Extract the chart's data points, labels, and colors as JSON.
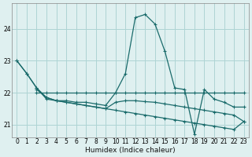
{
  "background_color": "#dff0f0",
  "grid_color": "#aed4d4",
  "line_color": "#1a6b6b",
  "xlabel": "Humidex (Indice chaleur)",
  "xlim": [
    -0.5,
    23.5
  ],
  "ylim": [
    20.6,
    24.8
  ],
  "yticks": [
    21,
    22,
    23,
    24
  ],
  "xticks": [
    0,
    1,
    2,
    3,
    4,
    5,
    6,
    7,
    8,
    9,
    10,
    11,
    12,
    13,
    14,
    15,
    16,
    17,
    18,
    19,
    20,
    21,
    22,
    23
  ],
  "line_flat_x": [
    2,
    3,
    4,
    5,
    6,
    7,
    8,
    9,
    10,
    11,
    12,
    13,
    14,
    15,
    16,
    17,
    18,
    19,
    20,
    21,
    22,
    23
  ],
  "line_flat_y": [
    22.0,
    22.0,
    22.0,
    22.0,
    22.0,
    22.0,
    22.0,
    22.0,
    22.0,
    22.0,
    22.0,
    22.0,
    22.0,
    22.0,
    22.0,
    22.0,
    22.0,
    22.0,
    22.0,
    22.0,
    22.0,
    22.0
  ],
  "line_peak_x": [
    0,
    1,
    2,
    3,
    4,
    5,
    6,
    7,
    8,
    9,
    10,
    11,
    12,
    13,
    14,
    15,
    16,
    17,
    18,
    19,
    20,
    21,
    22,
    23
  ],
  "line_peak_y": [
    23.0,
    22.6,
    22.15,
    21.8,
    21.75,
    21.75,
    21.7,
    21.7,
    21.65,
    21.6,
    22.0,
    22.6,
    24.35,
    24.45,
    24.15,
    23.3,
    22.15,
    22.1,
    20.7,
    22.1,
    21.8,
    21.7,
    21.55,
    21.55
  ],
  "line_slope1_x": [
    0,
    1,
    2,
    3,
    4,
    5,
    6,
    7,
    8,
    9,
    10,
    11,
    12,
    13,
    14,
    15,
    16,
    17,
    18,
    19,
    20,
    21,
    22,
    23
  ],
  "line_slope1_y": [
    23.0,
    22.6,
    22.15,
    21.85,
    21.75,
    21.7,
    21.65,
    21.6,
    21.55,
    21.5,
    21.45,
    21.4,
    21.35,
    21.3,
    21.25,
    21.2,
    21.15,
    21.1,
    21.05,
    21.0,
    20.95,
    20.9,
    20.85,
    21.1
  ],
  "line_slope2_x": [
    2,
    3,
    4,
    5,
    6,
    7,
    8,
    9,
    10,
    11,
    12,
    13,
    14,
    15,
    16,
    17,
    18,
    19,
    20,
    21,
    22,
    23
  ],
  "line_slope2_y": [
    22.1,
    21.85,
    21.75,
    21.7,
    21.65,
    21.6,
    21.55,
    21.5,
    21.7,
    21.75,
    21.75,
    21.72,
    21.7,
    21.65,
    21.6,
    21.55,
    21.5,
    21.45,
    21.4,
    21.35,
    21.3,
    21.1
  ]
}
